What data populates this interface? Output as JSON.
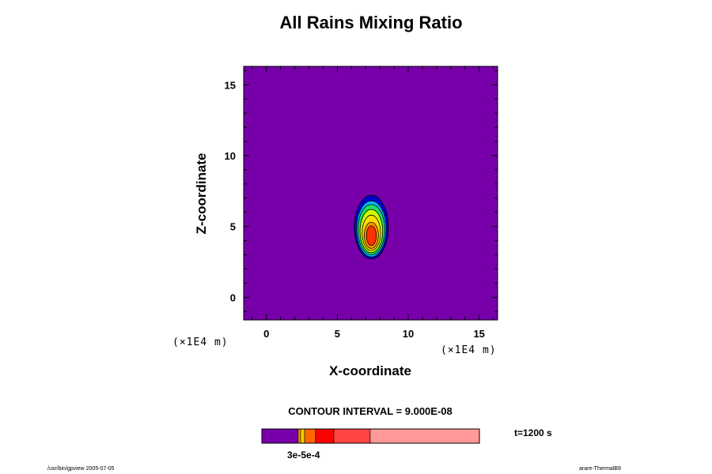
{
  "chart_data": {
    "type": "contour",
    "title": "All Rains Mixing Ratio",
    "xlabel": "X-coordinate",
    "ylabel": "Z-coordinate",
    "x_unit": "(×1E4 m)",
    "y_unit": "(×1E4 m)",
    "xlim": [
      -1.6,
      16.3
    ],
    "ylim": [
      -1.6,
      16.3
    ],
    "x_ticks": [
      "0",
      "5",
      "10",
      "15"
    ],
    "y_ticks": [
      "0",
      "5",
      "10",
      "15"
    ],
    "contour_interval_text": "CONTOUR INTERVAL = 9.000E-08",
    "time_text": "t=1200 s",
    "colorbar": {
      "tick_label": "3e-5e-4",
      "colors": [
        "#7700aa",
        "#ff9900",
        "#ffcc00",
        "#ff6600",
        "#ff0000",
        "#ff4444",
        "#ff9999"
      ]
    },
    "background_color": "#7700aa",
    "features": [
      {
        "name": "rain-cell",
        "center": [
          7.4,
          4.6
        ],
        "note": "nested contours rising from outer blue to inner red"
      }
    ],
    "contour_levels_colors": [
      "#0000cc",
      "#00bbff",
      "#22dd66",
      "#ccff00",
      "#ffdd00",
      "#ff9900",
      "#ff3300"
    ]
  },
  "footer": {
    "left": "/usr/bin/gpview 2005-07-05",
    "right": "arare-ThermalB9"
  }
}
